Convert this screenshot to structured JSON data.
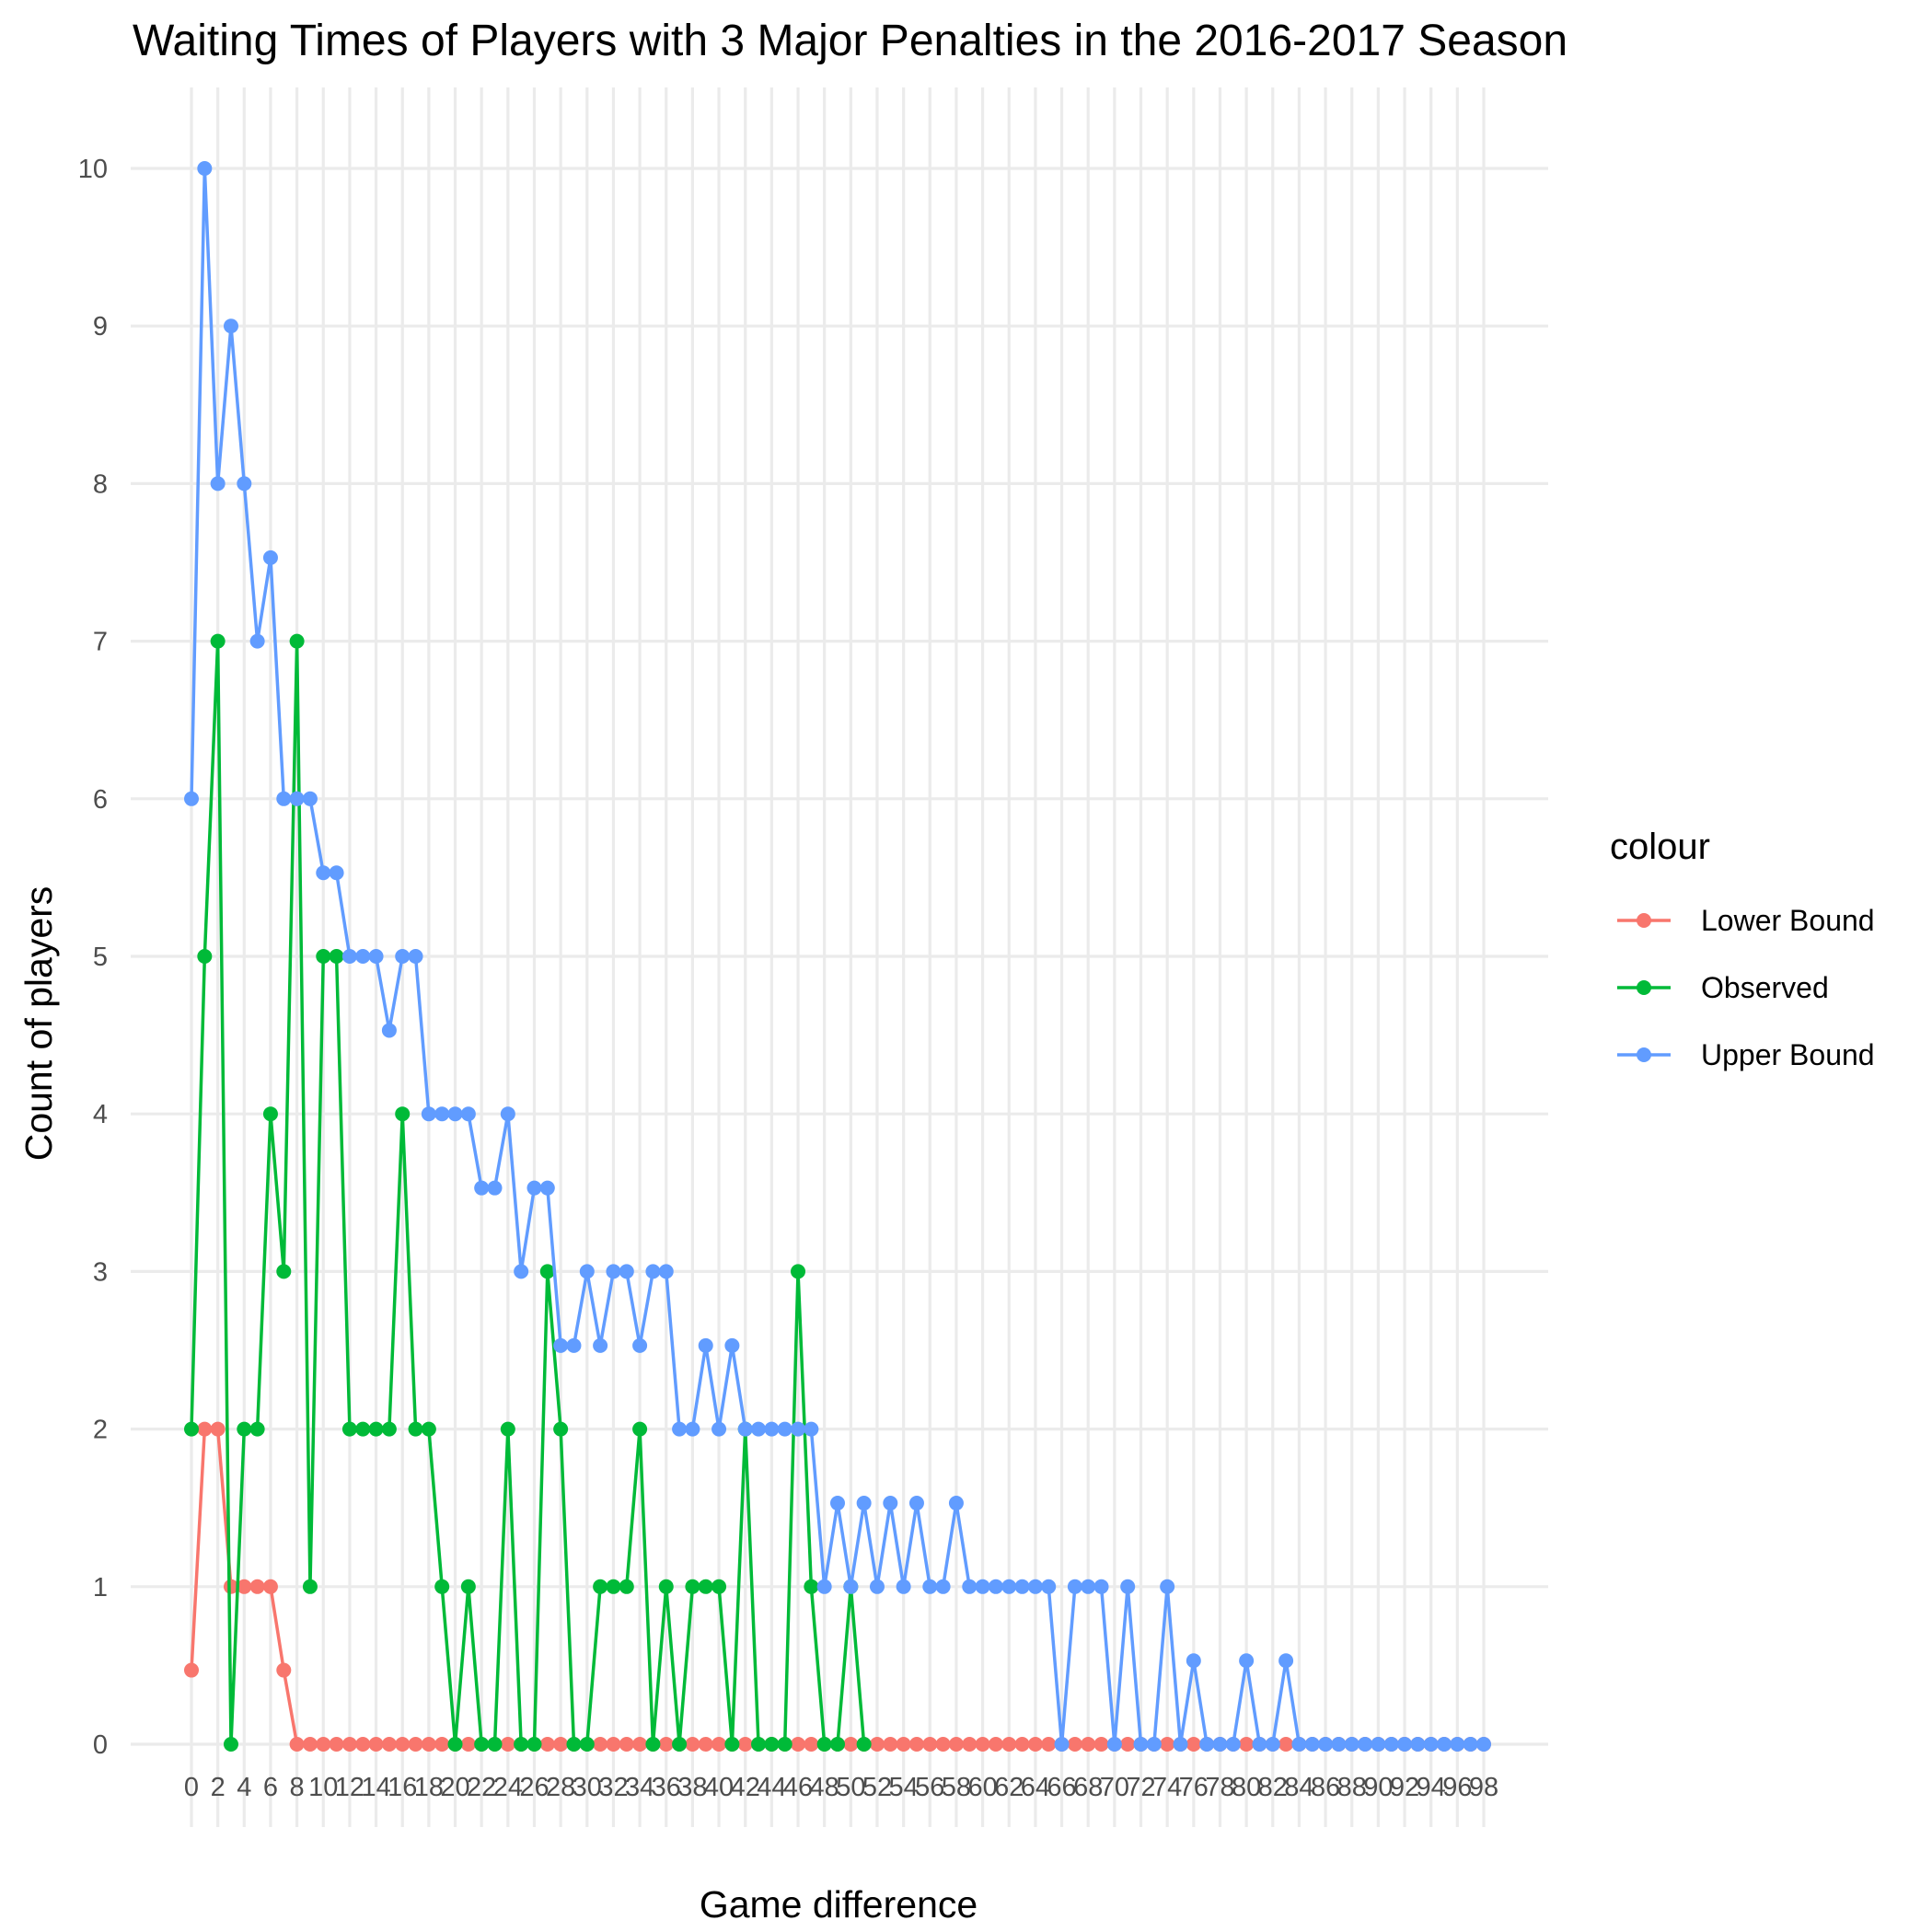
{
  "chart_data": {
    "type": "line",
    "title": "Waiting Times of Players with 3 Major Penalties in the 2016-2017 Season",
    "xlabel": "Game difference",
    "ylabel": "Count of players",
    "xlim": [
      0,
      98
    ],
    "ylim": [
      0,
      10
    ],
    "x_ticks": [
      0,
      2,
      4,
      6,
      8,
      10,
      12,
      14,
      16,
      18,
      20,
      22,
      24,
      26,
      28,
      30,
      32,
      34,
      36,
      38,
      40,
      42,
      44,
      46,
      48,
      50,
      52,
      54,
      56,
      58,
      60,
      62,
      64,
      66,
      68,
      70,
      72,
      74,
      76,
      78,
      80,
      82,
      84,
      86,
      88,
      90,
      92,
      94,
      96,
      98
    ],
    "y_ticks": [
      0,
      1,
      2,
      3,
      4,
      5,
      6,
      7,
      8,
      9,
      10
    ],
    "grid": true,
    "legend": {
      "title": "colour",
      "position": "right"
    },
    "series": [
      {
        "name": "Lower Bound",
        "color": "#F8766D",
        "points": [
          [
            0,
            0.47
          ],
          [
            1,
            2
          ],
          [
            2,
            2
          ],
          [
            3,
            1
          ],
          [
            4,
            1
          ],
          [
            5,
            1
          ],
          [
            6,
            1
          ],
          [
            7,
            0.47
          ],
          [
            8,
            0
          ],
          [
            9,
            0
          ],
          [
            10,
            0
          ],
          [
            11,
            0
          ],
          [
            12,
            0
          ],
          [
            13,
            0
          ],
          [
            14,
            0
          ],
          [
            15,
            0
          ],
          [
            16,
            0
          ],
          [
            17,
            0
          ],
          [
            18,
            0
          ],
          [
            19,
            0
          ],
          [
            20,
            0
          ],
          [
            21,
            0
          ],
          [
            22,
            0
          ],
          [
            23,
            0
          ],
          [
            24,
            0
          ],
          [
            25,
            0
          ],
          [
            26,
            0
          ],
          [
            27,
            0
          ],
          [
            28,
            0
          ],
          [
            29,
            0
          ],
          [
            30,
            0
          ],
          [
            31,
            0
          ],
          [
            32,
            0
          ],
          [
            33,
            0
          ],
          [
            34,
            0
          ],
          [
            35,
            0
          ],
          [
            36,
            0
          ],
          [
            37,
            0
          ],
          [
            38,
            0
          ],
          [
            39,
            0
          ],
          [
            40,
            0
          ],
          [
            41,
            0
          ],
          [
            42,
            0
          ],
          [
            43,
            0
          ],
          [
            44,
            0
          ],
          [
            45,
            0
          ],
          [
            46,
            0
          ],
          [
            47,
            0
          ],
          [
            48,
            0
          ],
          [
            49,
            0
          ],
          [
            50,
            0
          ],
          [
            51,
            0
          ],
          [
            52,
            0
          ],
          [
            53,
            0
          ],
          [
            54,
            0
          ],
          [
            55,
            0
          ],
          [
            56,
            0
          ],
          [
            57,
            0
          ],
          [
            58,
            0
          ],
          [
            59,
            0
          ],
          [
            60,
            0
          ],
          [
            61,
            0
          ],
          [
            62,
            0
          ],
          [
            63,
            0
          ],
          [
            64,
            0
          ],
          [
            65,
            0
          ],
          [
            66,
            0
          ],
          [
            67,
            0
          ],
          [
            68,
            0
          ],
          [
            69,
            0
          ],
          [
            70,
            0
          ],
          [
            71,
            0
          ],
          [
            72,
            0
          ],
          [
            73,
            0
          ],
          [
            74,
            0
          ],
          [
            75,
            0
          ],
          [
            76,
            0
          ],
          [
            77,
            0
          ],
          [
            78,
            0
          ],
          [
            79,
            0
          ],
          [
            80,
            0
          ],
          [
            81,
            0
          ],
          [
            82,
            0
          ],
          [
            83,
            0
          ],
          [
            84,
            0
          ],
          [
            85,
            0
          ],
          [
            86,
            0
          ],
          [
            87,
            0
          ],
          [
            88,
            0
          ],
          [
            89,
            0
          ],
          [
            90,
            0
          ],
          [
            91,
            0
          ],
          [
            92,
            0
          ],
          [
            93,
            0
          ],
          [
            94,
            0
          ],
          [
            95,
            0
          ],
          [
            96,
            0
          ],
          [
            97,
            0
          ],
          [
            98,
            0
          ]
        ]
      },
      {
        "name": "Observed",
        "color": "#00BA38",
        "points": [
          [
            0,
            2
          ],
          [
            1,
            5
          ],
          [
            2,
            7
          ],
          [
            3,
            0
          ],
          [
            4,
            2
          ],
          [
            5,
            2
          ],
          [
            6,
            4
          ],
          [
            7,
            3
          ],
          [
            8,
            7
          ],
          [
            9,
            1
          ],
          [
            10,
            5
          ],
          [
            11,
            5
          ],
          [
            12,
            2
          ],
          [
            13,
            2
          ],
          [
            14,
            2
          ],
          [
            15,
            2
          ],
          [
            16,
            4
          ],
          [
            17,
            2
          ],
          [
            18,
            2
          ],
          [
            19,
            1
          ],
          [
            20,
            0
          ],
          [
            21,
            1
          ],
          [
            22,
            0
          ],
          [
            23,
            0
          ],
          [
            24,
            2
          ],
          [
            25,
            0
          ],
          [
            26,
            0
          ],
          [
            27,
            3
          ],
          [
            28,
            2
          ],
          [
            29,
            0
          ],
          [
            30,
            0
          ],
          [
            31,
            1
          ],
          [
            32,
            1
          ],
          [
            33,
            1
          ],
          [
            34,
            2
          ],
          [
            35,
            0
          ],
          [
            36,
            1
          ],
          [
            37,
            0
          ],
          [
            38,
            1
          ],
          [
            39,
            1
          ],
          [
            40,
            1
          ],
          [
            41,
            0
          ],
          [
            42,
            2
          ],
          [
            43,
            0
          ],
          [
            44,
            0
          ],
          [
            45,
            0
          ],
          [
            46,
            3
          ],
          [
            47,
            1
          ],
          [
            48,
            0
          ],
          [
            49,
            0
          ],
          [
            50,
            1
          ],
          [
            51,
            0
          ]
        ]
      },
      {
        "name": "Upper Bound",
        "color": "#619CFF",
        "points": [
          [
            0,
            6
          ],
          [
            1,
            10
          ],
          [
            2,
            8
          ],
          [
            3,
            9
          ],
          [
            4,
            8
          ],
          [
            5,
            7
          ],
          [
            6,
            7.53
          ],
          [
            7,
            6
          ],
          [
            8,
            6
          ],
          [
            9,
            6
          ],
          [
            10,
            5.53
          ],
          [
            11,
            5.53
          ],
          [
            12,
            5
          ],
          [
            13,
            5
          ],
          [
            14,
            5
          ],
          [
            15,
            4.53
          ],
          [
            16,
            5
          ],
          [
            17,
            5
          ],
          [
            18,
            4
          ],
          [
            19,
            4
          ],
          [
            20,
            4
          ],
          [
            21,
            4
          ],
          [
            22,
            3.53
          ],
          [
            23,
            3.53
          ],
          [
            24,
            4
          ],
          [
            25,
            3
          ],
          [
            26,
            3.53
          ],
          [
            27,
            3.53
          ],
          [
            28,
            2.53
          ],
          [
            29,
            2.53
          ],
          [
            30,
            3
          ],
          [
            31,
            2.53
          ],
          [
            32,
            3
          ],
          [
            33,
            3
          ],
          [
            34,
            2.53
          ],
          [
            35,
            3
          ],
          [
            36,
            3
          ],
          [
            37,
            2
          ],
          [
            38,
            2
          ],
          [
            39,
            2.53
          ],
          [
            40,
            2
          ],
          [
            41,
            2.53
          ],
          [
            42,
            2
          ],
          [
            43,
            2
          ],
          [
            44,
            2
          ],
          [
            45,
            2
          ],
          [
            46,
            2
          ],
          [
            47,
            2
          ],
          [
            48,
            1
          ],
          [
            49,
            1.53
          ],
          [
            50,
            1
          ],
          [
            51,
            1.53
          ],
          [
            52,
            1
          ],
          [
            53,
            1.53
          ],
          [
            54,
            1
          ],
          [
            55,
            1.53
          ],
          [
            56,
            1
          ],
          [
            57,
            1
          ],
          [
            58,
            1.53
          ],
          [
            59,
            1
          ],
          [
            60,
            1
          ],
          [
            61,
            1
          ],
          [
            62,
            1
          ],
          [
            63,
            1
          ],
          [
            64,
            1
          ],
          [
            65,
            1
          ],
          [
            66,
            0
          ],
          [
            67,
            1
          ],
          [
            68,
            1
          ],
          [
            69,
            1
          ],
          [
            70,
            0
          ],
          [
            71,
            1
          ],
          [
            72,
            0
          ],
          [
            73,
            0
          ],
          [
            74,
            1
          ],
          [
            75,
            0
          ],
          [
            76,
            0.53
          ],
          [
            77,
            0
          ],
          [
            78,
            0
          ],
          [
            79,
            0
          ],
          [
            80,
            0.53
          ],
          [
            81,
            0
          ],
          [
            82,
            0
          ],
          [
            83,
            0.53
          ],
          [
            84,
            0
          ],
          [
            85,
            0
          ],
          [
            86,
            0
          ],
          [
            87,
            0
          ],
          [
            88,
            0
          ],
          [
            89,
            0
          ],
          [
            90,
            0
          ],
          [
            91,
            0
          ],
          [
            92,
            0
          ],
          [
            93,
            0
          ],
          [
            94,
            0
          ],
          [
            95,
            0
          ],
          [
            96,
            0
          ],
          [
            97,
            0
          ],
          [
            98,
            0
          ]
        ]
      }
    ]
  }
}
